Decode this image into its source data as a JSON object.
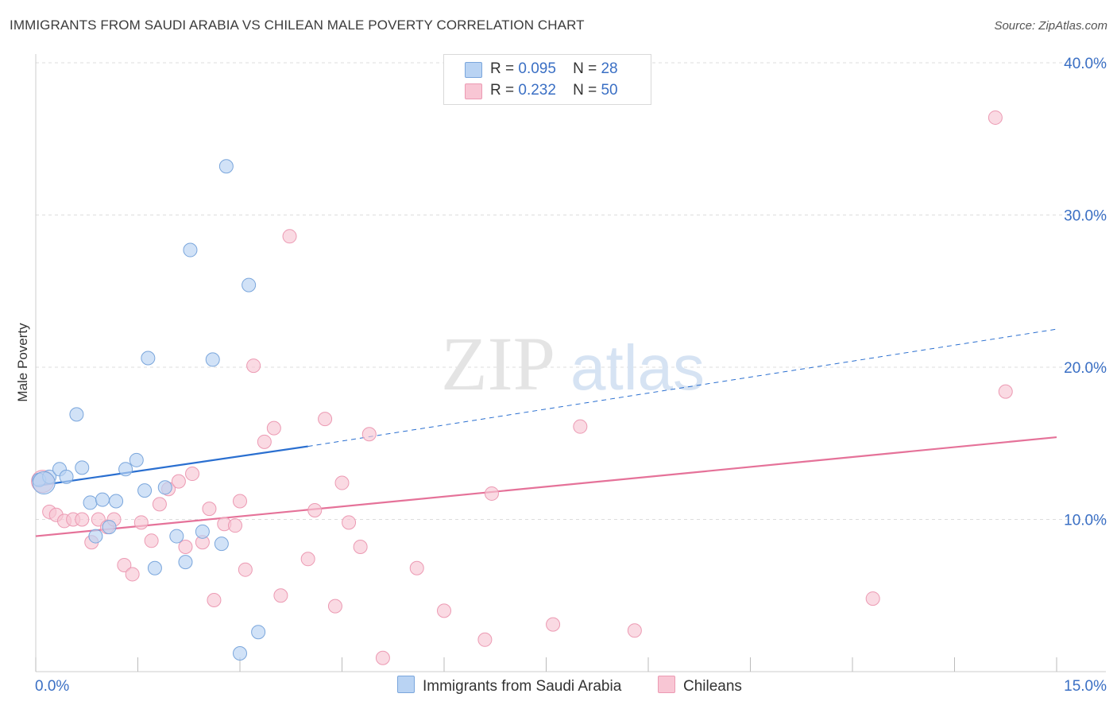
{
  "title": "IMMIGRANTS FROM SAUDI ARABIA VS CHILEAN MALE POVERTY CORRELATION CHART",
  "source": "Source: ZipAtlas.com",
  "watermark": {
    "zip": "ZIP",
    "atlas": "atlas"
  },
  "colors": {
    "blue_fill": "#b9d3f3",
    "blue_stroke": "#7aa6dc",
    "blue_line": "#2a6fd0",
    "pink_fill": "#f8c6d4",
    "pink_stroke": "#ec9ab3",
    "pink_line": "#e57299",
    "axis_label": "#3a6fc4",
    "grid": "#dddddd"
  },
  "legend": {
    "rows": [
      {
        "r_label": "R =",
        "r_value": "0.095",
        "n_label": "N =",
        "n_value": "28"
      },
      {
        "r_label": "R =",
        "r_value": "0.232",
        "n_label": "N =",
        "n_value": "50"
      }
    ],
    "bottom": [
      "Immigrants from Saudi Arabia",
      "Chileans"
    ]
  },
  "chart_data": {
    "type": "scatter",
    "xlabel": "",
    "ylabel": "Male Poverty",
    "xlim": [
      0,
      15
    ],
    "ylim": [
      0,
      40
    ],
    "x_tick_labels": [
      {
        "value": 0,
        "label": "0.0%"
      },
      {
        "value": 15,
        "label": "15.0%"
      }
    ],
    "y_tick_labels": [
      {
        "value": 10,
        "label": "10.0%"
      },
      {
        "value": 20,
        "label": "20.0%"
      },
      {
        "value": 30,
        "label": "30.0%"
      },
      {
        "value": 40,
        "label": "40.0%"
      }
    ],
    "grid": true,
    "legend_position": "top-center",
    "series": [
      {
        "name": "Immigrants from Saudi Arabia",
        "points": [
          [
            0.05,
            12.6
          ],
          [
            0.2,
            12.8
          ],
          [
            0.35,
            13.3
          ],
          [
            0.45,
            12.8
          ],
          [
            0.6,
            16.9
          ],
          [
            0.68,
            13.4
          ],
          [
            0.8,
            11.1
          ],
          [
            0.88,
            8.9
          ],
          [
            0.98,
            11.3
          ],
          [
            1.08,
            9.5
          ],
          [
            1.18,
            11.2
          ],
          [
            1.32,
            13.3
          ],
          [
            1.48,
            13.9
          ],
          [
            1.6,
            11.9
          ],
          [
            1.65,
            20.6
          ],
          [
            1.75,
            6.8
          ],
          [
            1.9,
            12.1
          ],
          [
            2.07,
            8.9
          ],
          [
            2.2,
            7.2
          ],
          [
            2.27,
            27.7
          ],
          [
            2.45,
            9.2
          ],
          [
            2.6,
            20.5
          ],
          [
            2.73,
            8.4
          ],
          [
            2.8,
            33.2
          ],
          [
            3.0,
            1.2
          ],
          [
            3.13,
            25.4
          ],
          [
            3.27,
            2.6
          ],
          [
            0.12,
            12.4
          ]
        ],
        "trend": {
          "x0": 0,
          "y0": 12.2,
          "x1": 4.0,
          "y1": 14.8,
          "dashed_to_x": 15,
          "dashed_to_y": 22.5
        }
      },
      {
        "name": "Chileans",
        "points": [
          [
            0.1,
            12.5
          ],
          [
            0.2,
            10.5
          ],
          [
            0.3,
            10.3
          ],
          [
            0.42,
            9.9
          ],
          [
            0.55,
            10.0
          ],
          [
            0.68,
            10.0
          ],
          [
            0.82,
            8.5
          ],
          [
            0.92,
            10.0
          ],
          [
            1.05,
            9.5
          ],
          [
            1.15,
            10.0
          ],
          [
            1.3,
            7.0
          ],
          [
            1.42,
            6.4
          ],
          [
            1.55,
            9.8
          ],
          [
            1.7,
            8.6
          ],
          [
            1.82,
            11.0
          ],
          [
            1.95,
            12.0
          ],
          [
            2.1,
            12.5
          ],
          [
            2.2,
            8.2
          ],
          [
            2.3,
            13.0
          ],
          [
            2.45,
            8.5
          ],
          [
            2.55,
            10.7
          ],
          [
            2.62,
            4.7
          ],
          [
            2.77,
            9.7
          ],
          [
            2.93,
            9.6
          ],
          [
            3.0,
            11.2
          ],
          [
            3.08,
            6.7
          ],
          [
            3.2,
            20.1
          ],
          [
            3.36,
            15.1
          ],
          [
            3.5,
            16.0
          ],
          [
            3.6,
            5.0
          ],
          [
            3.73,
            28.6
          ],
          [
            4.0,
            7.4
          ],
          [
            4.1,
            10.6
          ],
          [
            4.25,
            16.6
          ],
          [
            4.4,
            4.3
          ],
          [
            4.5,
            12.4
          ],
          [
            4.6,
            9.8
          ],
          [
            4.77,
            8.2
          ],
          [
            4.9,
            15.6
          ],
          [
            5.1,
            0.9
          ],
          [
            5.6,
            6.8
          ],
          [
            6.0,
            4.0
          ],
          [
            6.6,
            2.1
          ],
          [
            6.7,
            11.7
          ],
          [
            7.6,
            3.1
          ],
          [
            8.0,
            16.1
          ],
          [
            8.8,
            2.7
          ],
          [
            12.3,
            4.8
          ],
          [
            14.1,
            36.4
          ],
          [
            14.25,
            18.4
          ]
        ],
        "trend": {
          "x0": 0,
          "y0": 8.9,
          "x1": 15,
          "y1": 15.4
        }
      }
    ]
  }
}
